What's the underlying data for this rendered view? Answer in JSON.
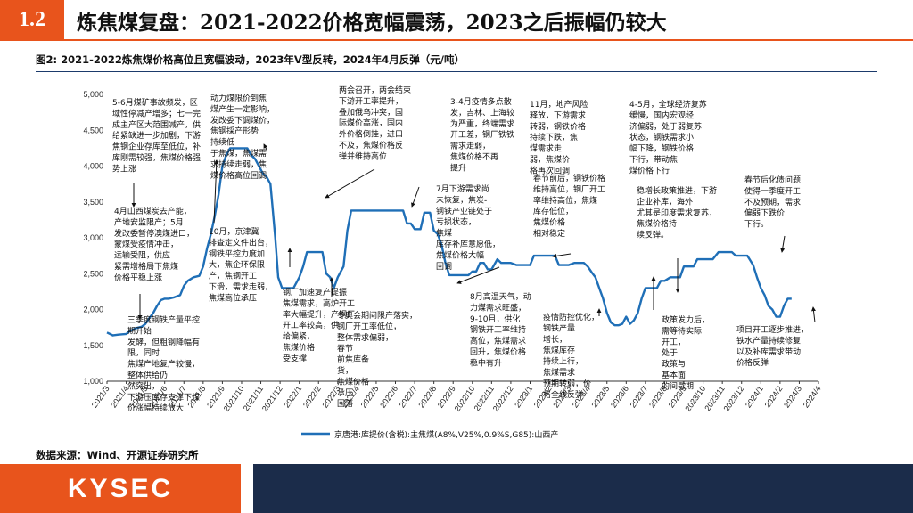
{
  "header": {
    "section_number": "1.2",
    "title": "炼焦煤复盘：2021-2022价格宽幅震荡，2023之后振幅仍较大"
  },
  "figure": {
    "caption": "图2:  2021-2022炼焦煤价格高位且宽幅波动，2023年V型反转，2024年4月反弹（元/吨）",
    "source": "数据来源：Wind、开源证券研究所"
  },
  "footer": {
    "logo_text": "KYSEC"
  },
  "colors": {
    "accent": "#e8541c",
    "line": "#1f6fb7",
    "navy": "#1b2c4a"
  },
  "chart_data": {
    "type": "line",
    "title": "",
    "xlabel": "",
    "ylabel": "",
    "ylim": [
      1000,
      5000
    ],
    "yticks": [
      "1,000",
      "1,500",
      "2,000",
      "2,500",
      "3,000",
      "3,500",
      "4,000",
      "4,500",
      "5,000"
    ],
    "ytick_values": [
      1000,
      1500,
      2000,
      2500,
      3000,
      3500,
      4000,
      4500,
      5000
    ],
    "xticks": [
      "2021/3",
      "2021/4",
      "2021/5",
      "2021/6",
      "2021/7",
      "2021/8",
      "2021/9",
      "2021/10",
      "2021/11",
      "2021/12",
      "2022/1",
      "2022/2",
      "2022/3",
      "2022/4",
      "2022/5",
      "2022/6",
      "2022/7",
      "2022/8",
      "2022/9",
      "2022/10",
      "2022/11",
      "2022/12",
      "2023/1",
      "2023/2",
      "2023/3",
      "2023/4",
      "2023/5",
      "2023/6",
      "2023/7",
      "2023/8",
      "2023/9",
      "2023/10",
      "2023/11",
      "2023/12",
      "2024/1",
      "2024/2",
      "2024/3",
      "2024/4"
    ],
    "legend": "京唐港:库提价(含税):主焦煤(A8%,V25%,0.9%S,G85):山西产",
    "legend_position": "bottom",
    "grid": false,
    "series": [
      {
        "name": "京唐港:库提价(含税):主焦煤(A8%,V25%,0.9%S,G85):山西产",
        "points": [
          [
            0,
            1680
          ],
          [
            0.3,
            1640
          ],
          [
            0.6,
            1650
          ],
          [
            1.0,
            1660
          ],
          [
            1.2,
            1700
          ],
          [
            1.5,
            1740
          ],
          [
            1.8,
            1760
          ],
          [
            2.0,
            1800
          ],
          [
            2.2,
            1880
          ],
          [
            2.4,
            1950
          ],
          [
            2.6,
            2050
          ],
          [
            2.8,
            2130
          ],
          [
            3.0,
            2150
          ],
          [
            3.2,
            2150
          ],
          [
            3.5,
            2170
          ],
          [
            3.8,
            2200
          ],
          [
            4.0,
            2330
          ],
          [
            4.2,
            2400
          ],
          [
            4.5,
            2450
          ],
          [
            4.8,
            2470
          ],
          [
            5.0,
            2600
          ],
          [
            5.2,
            2850
          ],
          [
            5.4,
            3050
          ],
          [
            5.6,
            3300
          ],
          [
            5.8,
            3600
          ],
          [
            6.0,
            4000
          ],
          [
            6.2,
            4150
          ],
          [
            6.4,
            4250
          ],
          [
            6.7,
            4250
          ],
          [
            7.0,
            4250
          ],
          [
            7.3,
            4250
          ],
          [
            7.5,
            4150
          ],
          [
            7.7,
            4100
          ],
          [
            7.9,
            4000
          ],
          [
            8.1,
            3900
          ],
          [
            8.3,
            3850
          ],
          [
            8.5,
            3750
          ],
          [
            8.6,
            3450
          ],
          [
            8.75,
            3000
          ],
          [
            8.9,
            2450
          ],
          [
            9.1,
            2300
          ],
          [
            9.4,
            2300
          ],
          [
            9.7,
            2300
          ],
          [
            10.0,
            2450
          ],
          [
            10.2,
            2600
          ],
          [
            10.4,
            2800
          ],
          [
            10.8,
            2800
          ],
          [
            11.2,
            2800
          ],
          [
            11.4,
            2500
          ],
          [
            11.6,
            2450
          ],
          [
            11.8,
            2300
          ],
          [
            12.0,
            2450
          ],
          [
            12.3,
            2600
          ],
          [
            12.5,
            3100
          ],
          [
            12.7,
            3380
          ],
          [
            13.0,
            3380
          ],
          [
            13.5,
            3380
          ],
          [
            14.0,
            3380
          ],
          [
            14.5,
            3380
          ],
          [
            15.0,
            3380
          ],
          [
            15.4,
            3380
          ],
          [
            15.6,
            3200
          ],
          [
            15.8,
            3200
          ],
          [
            16.0,
            3120
          ],
          [
            16.3,
            3120
          ],
          [
            16.5,
            3350
          ],
          [
            16.8,
            3350
          ],
          [
            17.0,
            3100
          ],
          [
            17.2,
            3050
          ],
          [
            17.4,
            2900
          ],
          [
            17.6,
            2650
          ],
          [
            17.8,
            2480
          ],
          [
            18.0,
            2480
          ],
          [
            18.4,
            2480
          ],
          [
            18.8,
            2480
          ],
          [
            19.0,
            2530
          ],
          [
            19.2,
            2530
          ],
          [
            19.4,
            2650
          ],
          [
            19.6,
            2650
          ],
          [
            19.8,
            2560
          ],
          [
            20.0,
            2560
          ],
          [
            20.3,
            2700
          ],
          [
            20.5,
            2650
          ],
          [
            20.7,
            2650
          ],
          [
            21.0,
            2650
          ],
          [
            21.3,
            2620
          ],
          [
            21.6,
            2620
          ],
          [
            22.0,
            2620
          ],
          [
            22.2,
            2750
          ],
          [
            22.5,
            2750
          ],
          [
            22.8,
            2750
          ],
          [
            23.0,
            2750
          ],
          [
            23.3,
            2750
          ],
          [
            23.5,
            2620
          ],
          [
            23.8,
            2620
          ],
          [
            24.0,
            2620
          ],
          [
            24.3,
            2650
          ],
          [
            24.6,
            2650
          ],
          [
            24.8,
            2650
          ],
          [
            25.0,
            2600
          ],
          [
            25.2,
            2520
          ],
          [
            25.4,
            2450
          ],
          [
            25.6,
            2300
          ],
          [
            25.8,
            2150
          ],
          [
            26.0,
            1950
          ],
          [
            26.2,
            1820
          ],
          [
            26.4,
            1780
          ],
          [
            26.6,
            1780
          ],
          [
            26.8,
            1800
          ],
          [
            27.0,
            1900
          ],
          [
            27.2,
            1800
          ],
          [
            27.4,
            1850
          ],
          [
            27.6,
            1950
          ],
          [
            27.8,
            2150
          ],
          [
            28.0,
            2300
          ],
          [
            28.3,
            2300
          ],
          [
            28.6,
            2300
          ],
          [
            28.8,
            2400
          ],
          [
            29.0,
            2400
          ],
          [
            29.3,
            2450
          ],
          [
            29.5,
            2450
          ],
          [
            29.8,
            2450
          ],
          [
            30.0,
            2600
          ],
          [
            30.3,
            2600
          ],
          [
            30.5,
            2600
          ],
          [
            30.7,
            2700
          ],
          [
            31.0,
            2700
          ],
          [
            31.3,
            2700
          ],
          [
            31.5,
            2700
          ],
          [
            31.8,
            2800
          ],
          [
            32.2,
            2800
          ],
          [
            32.5,
            2800
          ],
          [
            32.7,
            2750
          ],
          [
            33.0,
            2750
          ],
          [
            33.3,
            2750
          ],
          [
            33.6,
            2620
          ],
          [
            33.8,
            2450
          ],
          [
            34.0,
            2300
          ],
          [
            34.2,
            2200
          ],
          [
            34.4,
            2050
          ],
          [
            34.6,
            2000
          ],
          [
            34.8,
            1900
          ],
          [
            35.0,
            1900
          ],
          [
            35.2,
            2050
          ],
          [
            35.4,
            2150
          ],
          [
            35.6,
            2150
          ]
        ]
      }
    ],
    "annotations": [
      {
        "id": "ann-1",
        "lines": [
          "5-6月煤矿事故频发，区",
          "域性停减产增多；七一完",
          "成主产区大范围减产，供",
          "给紧缺进一步加剧，下游",
          "焦钢企业存库至低位，补",
          "库刚需较强，焦煤价格强",
          "势上涨"
        ]
      },
      {
        "id": "ann-2",
        "lines": [
          "4月山西煤炭去产能，",
          "产地安监限产；5月",
          "发改委暂停澳煤进口，",
          "蒙煤受疫情冲击，",
          "运输受阻，供应",
          "紧需增格局下焦煤",
          "价格平稳上涨"
        ]
      },
      {
        "id": "ann-3",
        "lines": [
          "三季度钢铁产量平控",
          "期开始",
          "发酵，但粗钢降幅有",
          "限，同时",
          "焦煤产地复产较慢，",
          "整体供给仍",
          "然突出，",
          "下游压库存支撑下煤",
          "价涨幅持续放大"
        ]
      },
      {
        "id": "ann-4",
        "lines": [
          "动力煤限价到焦",
          "煤产生一定影响，",
          "发改委下调煤价，",
          "焦钢採产形势",
          "持续低",
          "于焦煤，焦煤需",
          "求持续走弱，焦",
          "煤价格高位回调"
        ]
      },
      {
        "id": "ann-5",
        "lines": [
          "10月，京津冀",
          "排查定文件出台，",
          "钢铁平控力度加",
          "大，焦企环保限",
          "产，焦钢开工",
          "下滑，需求走弱，",
          "焦煤高位承压"
        ]
      },
      {
        "id": "ann-6",
        "lines": [
          "钢厂加速复产提振",
          "焦煤需求，高炉开工",
          "率大幅提升，产钢厂",
          "开工率较高，供",
          "给偏紧，",
          "焦煤价格",
          "受支撑"
        ]
      },
      {
        "id": "ann-7",
        "lines": [
          "冬奥会期间限产落实，",
          "钢厂开工率低位，",
          "整体需求偏弱，",
          "春节",
          "前焦库备",
          "货，",
          "焦煤价格",
          "承压",
          "回落"
        ]
      },
      {
        "id": "ann-8",
        "lines": [
          "两会召开，两会结束",
          "下游开工率提升，",
          "叠加俄乌冲突，国",
          "际煤价高涨，国内",
          "外价格倒挂，进口",
          "不及，焦煤价格反",
          "弹并维持高位"
        ]
      },
      {
        "id": "ann-9",
        "lines": [
          "3-4月疫情多点散",
          "发，吉林、上海较",
          "为严重，终端需求",
          "开工差，钢厂铁铁",
          "需求走弱，",
          "焦煤价格不再",
          "提升"
        ]
      },
      {
        "id": "ann-10",
        "lines": [
          "7月下游需求尚",
          "未恢复，焦炭-",
          "钢铁产业链处于",
          "亏损状态，",
          "焦煤",
          "库存补库意愿低，",
          "焦煤价格大幅",
          "回调"
        ]
      },
      {
        "id": "ann-11",
        "lines": [
          "8月高温天气，动",
          "力煤需求旺盛，",
          "9-10月，供化",
          "钢铁开工率维持",
          "高位，焦煤需求",
          "回升，焦煤价格",
          "稳中有升"
        ]
      },
      {
        "id": "ann-12",
        "lines": [
          "11月，地产风险",
          "释放，下游需求",
          "转弱，钢铁价格",
          "持续下跌，焦",
          "煤需求走",
          "弱，焦煤价",
          "格再次回调"
        ]
      },
      {
        "id": "ann-13",
        "lines": [
          "春节前后，钢铁价格",
          "维持高位，钢厂开工",
          "率维持高位，焦煤",
          "库存低位，",
          "焦煤价格",
          "相对稳定"
        ]
      },
      {
        "id": "ann-14",
        "lines": [
          "疫情防控优化，",
          "钢铁产量",
          "增长，",
          "焦煤库存",
          "持续上行，",
          "焦煤需求",
          "预期转弱，价",
          "格全线反弹"
        ]
      },
      {
        "id": "ann-15",
        "lines": [
          "4-5月，全球经济复苏",
          "缓慢，国内宏观经",
          "济偏弱，处于弱复苏",
          "状态，钢铁需求小",
          "幅下降，钢铁价格",
          "下行，带动焦",
          "煤价格下行"
        ]
      },
      {
        "id": "ann-16",
        "lines": [
          "稳增长政策推进，下游",
          "企业补库，海外",
          "尤其是印度需求复苏，",
          "焦煤价格持",
          "续反弹。"
        ]
      },
      {
        "id": "ann-17",
        "lines": [
          "政策发力后，",
          "需等待实际",
          "开工，",
          "处于",
          "政策与",
          "基本面",
          "的间歇期"
        ]
      },
      {
        "id": "ann-18",
        "lines": [
          "春节后化债问题",
          "使得一季度开工",
          "不及预期，需求",
          "偏弱下跌价",
          "下行。"
        ]
      },
      {
        "id": "ann-19",
        "lines": [
          "项目开工逐步推进，",
          "铁水产量持续修复",
          "以及补库需求带动",
          "价格反弹"
        ]
      }
    ]
  }
}
